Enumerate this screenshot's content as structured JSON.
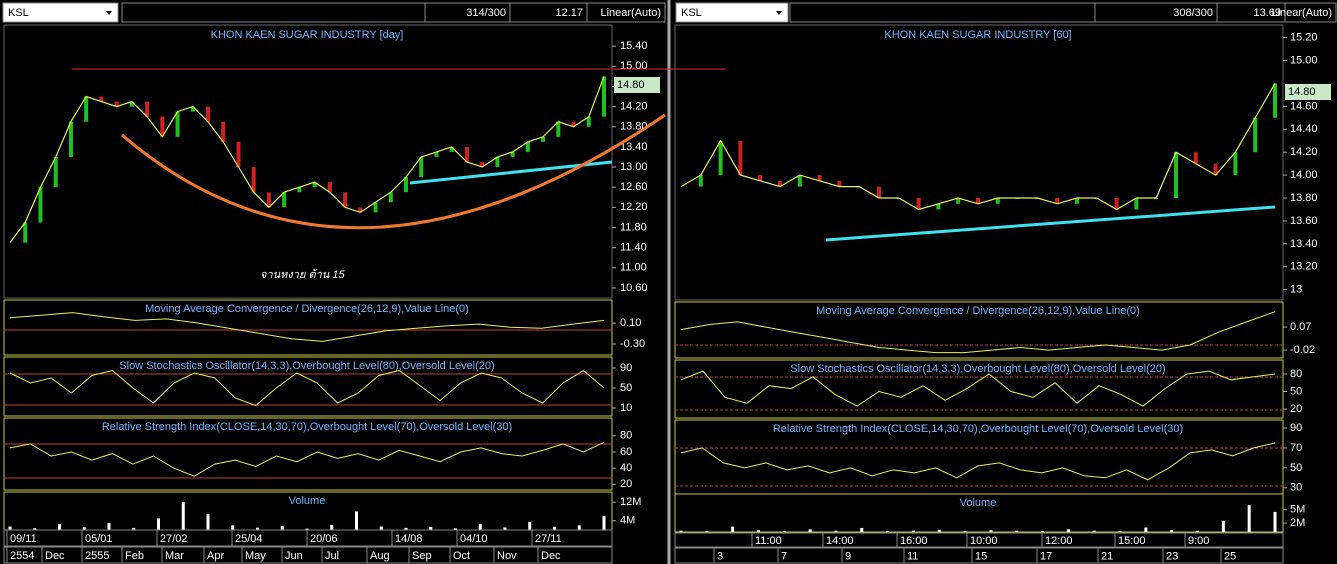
{
  "panels": [
    {
      "toolbar": {
        "symbol": "KSL",
        "count": "314/300",
        "last": "12.17",
        "scale": "Linear(Auto)"
      },
      "title": "KHON KAEN SUGAR INDUSTRY [day]",
      "price_label": "14.80",
      "annotation": "จานหงาย ต้าน 15",
      "price": {
        "ylim": [
          10.4,
          15.82
        ],
        "yticks": [
          {
            "value": 15.4,
            "label": "15.40"
          },
          {
            "value": 15.0,
            "label": "15.00"
          },
          {
            "value": 14.6,
            "label": "14.60"
          },
          {
            "value": 14.2,
            "label": "14.20"
          },
          {
            "value": 13.8,
            "label": "13.80"
          },
          {
            "value": 13.4,
            "label": "13.40"
          },
          {
            "value": 13.0,
            "label": "13.00"
          },
          {
            "value": 12.6,
            "label": "12.60"
          },
          {
            "value": 12.2,
            "label": "12.20"
          },
          {
            "value": 11.8,
            "label": "11.80"
          },
          {
            "value": 11.4,
            "label": "11.40"
          },
          {
            "value": 11.0,
            "label": "11.00"
          },
          {
            "value": 10.6,
            "label": "10.60"
          }
        ],
        "close": [
          11.5,
          11.9,
          12.6,
          13.2,
          13.9,
          14.4,
          14.3,
          14.2,
          14.3,
          14.0,
          13.6,
          14.1,
          14.2,
          13.9,
          13.5,
          13.0,
          12.5,
          12.2,
          12.5,
          12.6,
          12.7,
          12.5,
          12.2,
          12.1,
          12.3,
          12.5,
          12.8,
          13.2,
          13.3,
          13.4,
          13.1,
          13.0,
          13.2,
          13.3,
          13.5,
          13.6,
          13.9,
          13.8,
          14.0,
          14.8
        ]
      },
      "panes": [
        {
          "title": "Moving Average Convergence / Divergence(26,12,9),Value Line(0)",
          "ylim": [
            -0.51,
            0.54
          ],
          "yticks": [
            {
              "value": 0.1,
              "label": "0.10"
            },
            {
              "value": -0.3,
              "label": "-0.30"
            }
          ],
          "values": [
            0.2,
            0.25,
            0.3,
            0.22,
            0.15,
            0.18,
            0.1,
            0.0,
            -0.1,
            -0.2,
            -0.25,
            -0.15,
            -0.05,
            0.0,
            0.05,
            0.08,
            0.02,
            0.0,
            0.08,
            0.15
          ]
        },
        {
          "title": "Slow Stochastics Oscillator(14,3,3),Overbought Level(80),Oversold Level(20)",
          "ylim": [
            -6,
            112
          ],
          "yticks": [
            90,
            50,
            10
          ],
          "values": [
            80,
            60,
            70,
            40,
            75,
            85,
            50,
            20,
            60,
            80,
            70,
            30,
            15,
            50,
            80,
            60,
            20,
            40,
            75,
            85,
            55,
            25,
            60,
            80,
            70,
            40,
            20,
            60,
            85,
            50
          ]
        },
        {
          "title": "Relative Strength Index(CLOSE,14,30,70),Overbought Level(70),Oversold Level(30)",
          "ylim": [
            13,
            102
          ],
          "yticks": [
            80,
            60,
            40,
            20
          ],
          "values": [
            65,
            70,
            55,
            60,
            50,
            58,
            45,
            55,
            40,
            30,
            45,
            50,
            42,
            55,
            48,
            60,
            52,
            58,
            50,
            62,
            55,
            48,
            60,
            65,
            58,
            55,
            62,
            70,
            60,
            72
          ]
        },
        {
          "title": "Volume",
          "ylim": [
            0,
            16400000
          ],
          "yticks": [
            {
              "value": 12000000,
              "label": "12M"
            },
            {
              "value": 4000000,
              "label": "4M"
            }
          ],
          "values": [
            1500000,
            800000,
            2500000,
            1200000,
            3000000,
            900000,
            5000000,
            12000000,
            7000000,
            2000000,
            1000000,
            1800000,
            600000,
            2200000,
            8000000,
            1500000,
            900000,
            1300000,
            700000,
            2600000,
            1100000,
            3500000,
            1400000,
            2000000,
            6000000
          ]
        }
      ],
      "dates": [
        "09/11",
        "05/01",
        "27/02",
        "25/04",
        "20/06",
        "14/08",
        "04/10",
        "27/11"
      ],
      "months": [
        "2554",
        "Dec",
        "2555",
        "Feb",
        "Mar",
        "Apr",
        "May",
        "Jun",
        "Jul",
        "Aug",
        "Sep",
        "Oct",
        "Nov",
        "Dec"
      ]
    },
    {
      "toolbar": {
        "symbol": "KSL",
        "count": "308/300",
        "last": "13.69",
        "scale": "Linear(Auto)"
      },
      "title": "KHON KAEN SUGAR INDUSTRY [60]",
      "price_label": "14.80",
      "price": {
        "ylim": [
          12.91,
          15.31
        ],
        "yticks": [
          {
            "value": 15.2,
            "label": "15.20"
          },
          {
            "value": 15.0,
            "label": "15.00"
          },
          {
            "value": 14.6,
            "label": "14.60"
          },
          {
            "value": 14.4,
            "label": "14.40"
          },
          {
            "value": 14.2,
            "label": "14.20"
          },
          {
            "value": 14.0,
            "label": "14.00"
          },
          {
            "value": 13.8,
            "label": "13.80"
          },
          {
            "value": 13.6,
            "label": "13.60"
          },
          {
            "value": 13.4,
            "label": "13.40"
          },
          {
            "value": 13.2,
            "label": "13.20"
          },
          13
        ],
        "close": [
          13.9,
          14.0,
          14.3,
          14.0,
          13.95,
          13.9,
          14.0,
          13.95,
          13.9,
          13.9,
          13.8,
          13.8,
          13.7,
          13.75,
          13.8,
          13.75,
          13.8,
          13.8,
          13.8,
          13.75,
          13.8,
          13.8,
          13.7,
          13.8,
          13.8,
          14.2,
          14.1,
          14.0,
          14.2,
          14.5,
          14.8
        ]
      },
      "panes": [
        {
          "title": "Moving Average Convergence / Divergence(26,12,9),Value Line(0)",
          "ylim": [
            -0.051,
            0.168
          ],
          "yticks": [
            {
              "value": 0.07,
              "label": "0.07"
            },
            {
              "value": -0.02,
              "label": "-0.02"
            }
          ],
          "values": [
            0.06,
            0.08,
            0.09,
            0.07,
            0.05,
            0.03,
            0.01,
            -0.01,
            -0.02,
            -0.03,
            -0.03,
            -0.02,
            -0.01,
            -0.02,
            -0.01,
            0.0,
            -0.01,
            -0.02,
            0.0,
            0.05,
            0.09,
            0.13
          ]
        },
        {
          "title": "Slow Stochastics Oscillator(14,3,3),Overbought Level(80),Oversold Level(20)",
          "ylim": [
            4.6,
            104
          ],
          "yticks": [
            80,
            50,
            20
          ],
          "values": [
            70,
            85,
            40,
            30,
            60,
            55,
            75,
            45,
            25,
            50,
            40,
            60,
            35,
            55,
            80,
            50,
            40,
            65,
            30,
            60,
            45,
            25,
            55,
            80,
            85,
            70,
            75,
            80
          ]
        },
        {
          "title": "Relative Strength Index(CLOSE,14,30,70),Overbought Level(70),Oversold Level(30)",
          "ylim": [
            23.8,
            98
          ],
          "yticks": [
            90,
            70,
            50,
            30
          ],
          "values": [
            65,
            70,
            55,
            50,
            55,
            48,
            52,
            45,
            50,
            42,
            48,
            45,
            50,
            40,
            52,
            55,
            48,
            45,
            50,
            42,
            40,
            48,
            38,
            50,
            65,
            68,
            62,
            70,
            75
          ]
        },
        {
          "title": "Volume",
          "ylim": [
            0,
            8500000
          ],
          "yticks": [
            {
              "value": 5000000,
              "label": "5M"
            },
            {
              "value": 2000000,
              "label": "2M"
            }
          ],
          "values": [
            300000,
            200000,
            1200000,
            400000,
            200000,
            600000,
            300000,
            900000,
            200000,
            300000,
            500000,
            200000,
            400000,
            300000,
            200000,
            600000,
            300000,
            200000,
            1000000,
            400000,
            300000,
            2500000,
            6000000,
            4500000
          ]
        }
      ],
      "dates": [
        "11:00",
        "14:00",
        "16:00",
        "10:00",
        "12:00",
        "15:00",
        "9:00"
      ],
      "months": [
        "3",
        "7",
        "9",
        "11",
        "15",
        "17",
        "21",
        "23",
        "25"
      ]
    }
  ]
}
